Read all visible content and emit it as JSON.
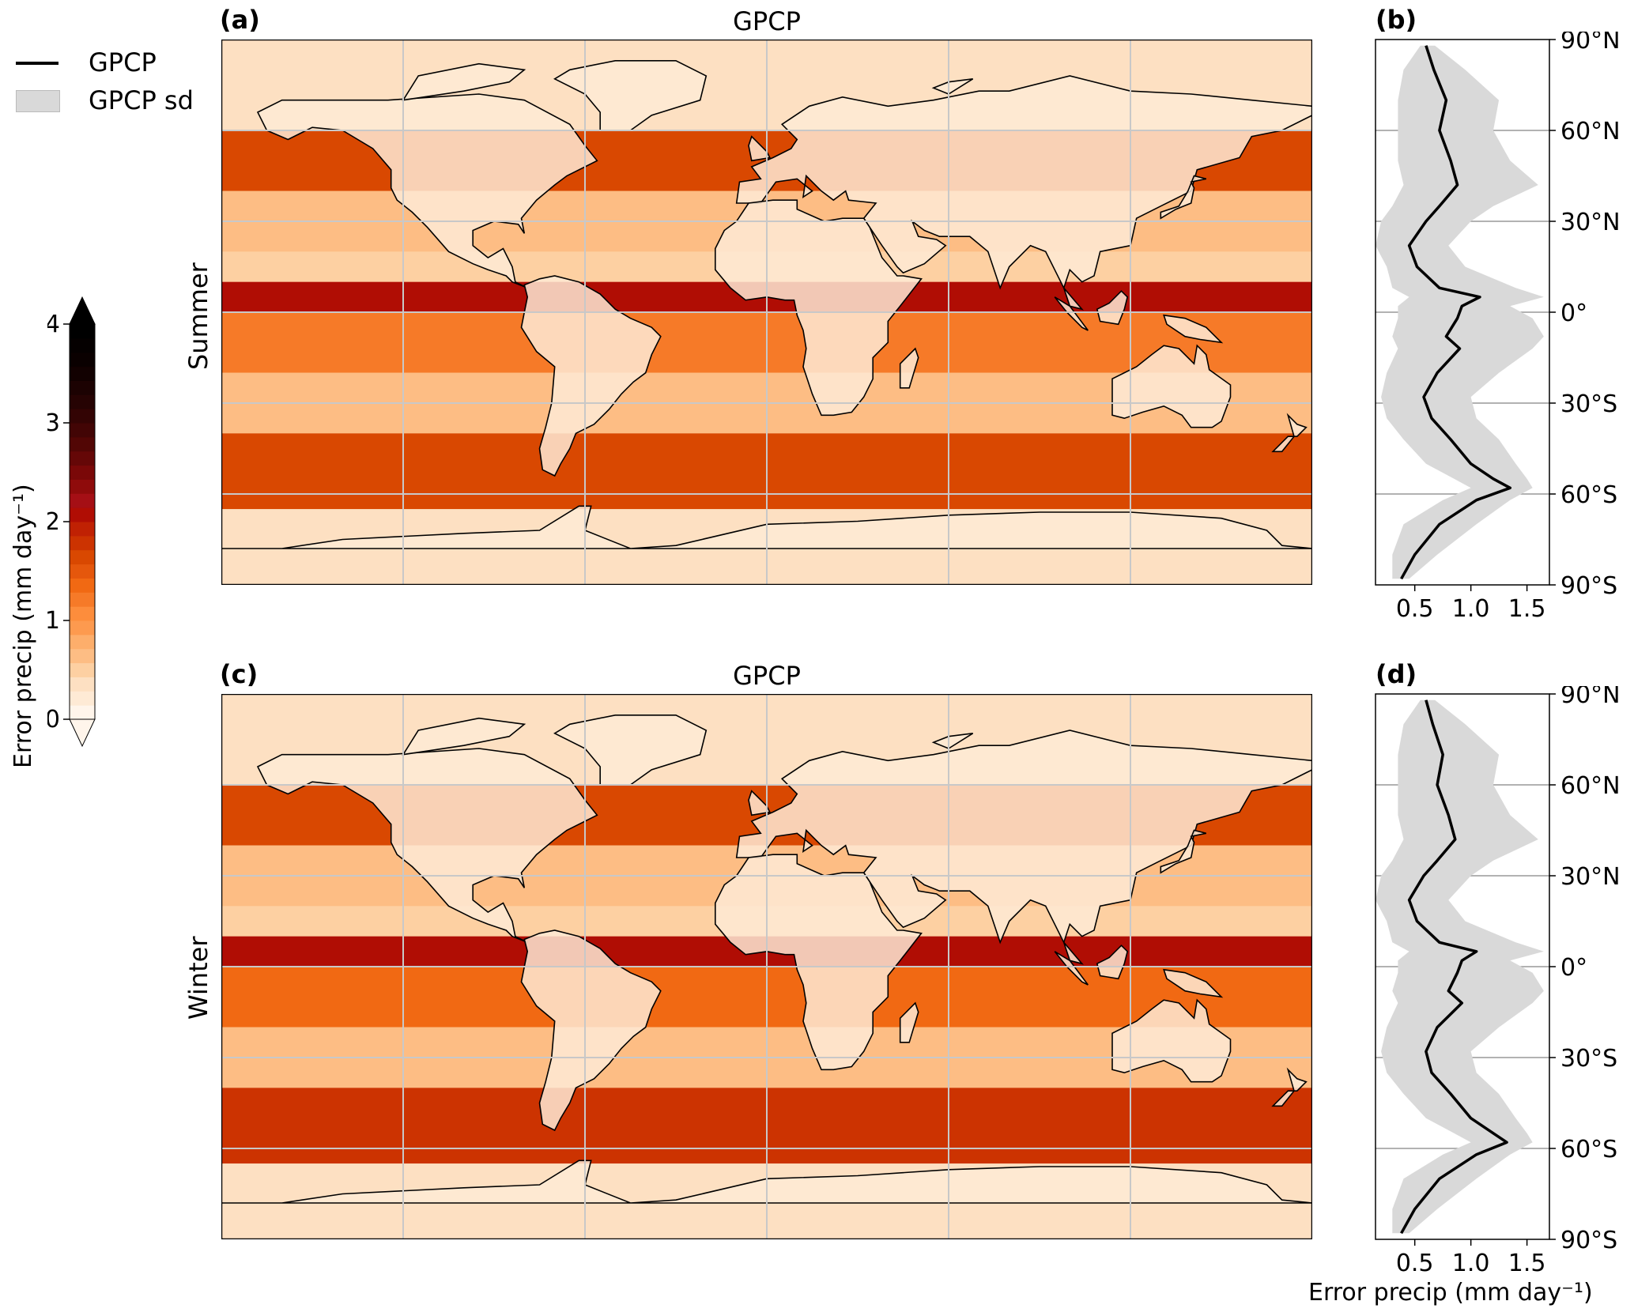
{
  "legend": {
    "line_label": "GPCP",
    "band_label": "GPCP sd"
  },
  "colorbar": {
    "label": "Error precip (mm day⁻¹)",
    "ticks": [
      "0",
      "1",
      "2",
      "3",
      "4"
    ],
    "range": [
      0,
      4
    ],
    "extend": "both",
    "colors": [
      "#fff5eb",
      "#feead5",
      "#fde0c2",
      "#fdd0a2",
      "#fdbd84",
      "#fdae6b",
      "#fd9a4f",
      "#fd8d3c",
      "#f67a28",
      "#f16913",
      "#e5570c",
      "#d94801",
      "#cc3301",
      "#c02103",
      "#b00d04",
      "#a50f15",
      "#8f0b0b",
      "#7a0808",
      "#650707",
      "#520605",
      "#420505",
      "#330404",
      "#260303",
      "#1c0202",
      "#120101",
      "#0a0000",
      "#050000",
      "#000000"
    ]
  },
  "panels": {
    "a": {
      "letter": "(a)",
      "title": "GPCP",
      "row_label": "Summer"
    },
    "b": {
      "letter": "(b)"
    },
    "c": {
      "letter": "(c)",
      "title": "GPCP",
      "row_label": "Winter"
    },
    "d": {
      "letter": "(d)",
      "xlabel": "Error precip (mm day⁻¹)"
    }
  },
  "colors": {
    "profile_line": "#000000",
    "sd_band": "#d9d9d9",
    "gridline": "#c8c8c8",
    "coast": "#000000"
  },
  "chart_data": [
    {
      "type": "heatmap",
      "panel": "a",
      "title": "GPCP",
      "row_label": "Summer",
      "description_units": "mm day-1",
      "lat_gridlines": [
        60,
        30,
        0,
        -30,
        -60
      ],
      "lon_gridlines": [
        -120,
        -60,
        0,
        60,
        120
      ],
      "colorbar_range": [
        0,
        4
      ],
      "zonal_band_values": [
        {
          "lat_range": [
            60,
            90
          ],
          "value": 0.3
        },
        {
          "lat_range": [
            40,
            60
          ],
          "value": 1.6
        },
        {
          "lat_range": [
            20,
            40
          ],
          "value": 0.6
        },
        {
          "lat_range": [
            0,
            10
          ],
          "value": 2.0
        },
        {
          "lat_range": [
            -20,
            0
          ],
          "value": 1.2
        },
        {
          "lat_range": [
            -40,
            -20
          ],
          "value": 0.6
        },
        {
          "lat_range": [
            -65,
            -40
          ],
          "value": 1.7
        },
        {
          "lat_range": [
            -90,
            -65
          ],
          "value": 0.4
        }
      ]
    },
    {
      "type": "line",
      "panel": "b",
      "xlabel": "",
      "ylabel": "",
      "xlim": [
        0.15,
        1.7
      ],
      "ylim": [
        -90,
        90
      ],
      "xticks": [
        "0.5",
        "1.0",
        "1.5"
      ],
      "yticks": [
        "90°N",
        "60°N",
        "30°N",
        "0°",
        "30°S",
        "60°S",
        "90°S"
      ],
      "ytick_values": [
        90,
        60,
        30,
        0,
        -30,
        -60,
        -90
      ],
      "series": [
        {
          "name": "GPCP",
          "lat": [
            88,
            80,
            70,
            60,
            50,
            42,
            35,
            30,
            22,
            15,
            8,
            5,
            2,
            -2,
            -8,
            -12,
            -20,
            -28,
            -35,
            -42,
            -50,
            -55,
            -58,
            -62,
            -70,
            -80,
            -88
          ],
          "x": [
            0.6,
            0.67,
            0.78,
            0.72,
            0.82,
            0.88,
            0.72,
            0.6,
            0.45,
            0.52,
            0.72,
            1.08,
            0.92,
            0.88,
            0.78,
            0.9,
            0.7,
            0.58,
            0.65,
            0.82,
            1.0,
            1.2,
            1.35,
            1.05,
            0.72,
            0.5,
            0.38
          ]
        },
        {
          "name": "GPCP sd",
          "lat": [
            88,
            80,
            70,
            60,
            50,
            42,
            35,
            30,
            22,
            15,
            8,
            5,
            2,
            -2,
            -8,
            -12,
            -20,
            -28,
            -35,
            -42,
            -50,
            -55,
            -58,
            -62,
            -70,
            -80,
            -88
          ],
          "lower": [
            0.55,
            0.4,
            0.35,
            0.35,
            0.35,
            0.4,
            0.3,
            0.2,
            0.15,
            0.25,
            0.3,
            0.45,
            0.35,
            0.35,
            0.3,
            0.35,
            0.25,
            0.2,
            0.25,
            0.4,
            0.6,
            0.85,
            1.0,
            0.75,
            0.4,
            0.3,
            0.3
          ],
          "upper": [
            0.68,
            0.95,
            1.25,
            1.2,
            1.35,
            1.6,
            1.2,
            1.0,
            0.8,
            0.95,
            1.4,
            1.65,
            1.35,
            1.55,
            1.65,
            1.55,
            1.25,
            1.0,
            1.05,
            1.25,
            1.4,
            1.5,
            1.55,
            1.35,
            1.05,
            0.7,
            0.45
          ]
        }
      ]
    },
    {
      "type": "heatmap",
      "panel": "c",
      "title": "GPCP",
      "row_label": "Winter",
      "lat_gridlines": [
        60,
        30,
        0,
        -30,
        -60
      ],
      "lon_gridlines": [
        -120,
        -60,
        0,
        60,
        120
      ],
      "colorbar_range": [
        0,
        4
      ],
      "zonal_band_values": [
        {
          "lat_range": [
            60,
            90
          ],
          "value": 0.3
        },
        {
          "lat_range": [
            40,
            60
          ],
          "value": 1.7
        },
        {
          "lat_range": [
            20,
            40
          ],
          "value": 0.6
        },
        {
          "lat_range": [
            0,
            10
          ],
          "value": 2.0
        },
        {
          "lat_range": [
            -20,
            0
          ],
          "value": 1.3
        },
        {
          "lat_range": [
            -40,
            -20
          ],
          "value": 0.6
        },
        {
          "lat_range": [
            -65,
            -40
          ],
          "value": 1.8
        },
        {
          "lat_range": [
            -90,
            -65
          ],
          "value": 0.4
        }
      ]
    },
    {
      "type": "line",
      "panel": "d",
      "xlabel": "Error precip (mm day⁻¹)",
      "ylabel": "",
      "xlim": [
        0.15,
        1.7
      ],
      "ylim": [
        -90,
        90
      ],
      "xticks": [
        "0.5",
        "1.0",
        "1.5"
      ],
      "yticks": [
        "90°N",
        "60°N",
        "30°N",
        "0°",
        "30°S",
        "60°S",
        "90°S"
      ],
      "ytick_values": [
        90,
        60,
        30,
        0,
        -30,
        -60,
        -90
      ],
      "series": [
        {
          "name": "GPCP",
          "lat": [
            88,
            80,
            70,
            60,
            50,
            42,
            35,
            30,
            22,
            15,
            8,
            5,
            2,
            -2,
            -8,
            -12,
            -20,
            -28,
            -35,
            -42,
            -50,
            -55,
            -58,
            -62,
            -70,
            -80,
            -88
          ],
          "x": [
            0.6,
            0.66,
            0.75,
            0.7,
            0.8,
            0.86,
            0.7,
            0.58,
            0.45,
            0.52,
            0.72,
            1.05,
            0.92,
            0.88,
            0.8,
            0.92,
            0.7,
            0.6,
            0.65,
            0.82,
            1.0,
            1.2,
            1.32,
            1.05,
            0.72,
            0.5,
            0.38
          ]
        },
        {
          "name": "GPCP sd",
          "lat": [
            88,
            80,
            70,
            60,
            50,
            42,
            35,
            30,
            22,
            15,
            8,
            5,
            2,
            -2,
            -8,
            -12,
            -20,
            -28,
            -35,
            -42,
            -50,
            -55,
            -58,
            -62,
            -70,
            -80,
            -88
          ],
          "lower": [
            0.55,
            0.4,
            0.35,
            0.35,
            0.35,
            0.4,
            0.3,
            0.2,
            0.15,
            0.25,
            0.3,
            0.45,
            0.35,
            0.35,
            0.3,
            0.35,
            0.25,
            0.2,
            0.25,
            0.4,
            0.6,
            0.85,
            1.0,
            0.75,
            0.4,
            0.3,
            0.3
          ],
          "upper": [
            0.68,
            0.95,
            1.25,
            1.2,
            1.35,
            1.6,
            1.2,
            1.0,
            0.8,
            0.95,
            1.4,
            1.65,
            1.35,
            1.55,
            1.65,
            1.55,
            1.25,
            1.0,
            1.05,
            1.25,
            1.4,
            1.5,
            1.55,
            1.35,
            1.05,
            0.7,
            0.45
          ]
        }
      ]
    }
  ]
}
